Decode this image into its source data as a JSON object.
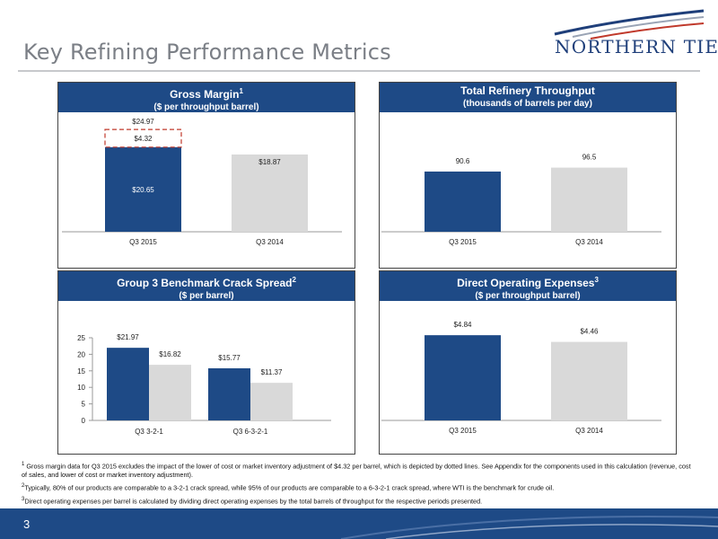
{
  "header": {
    "title": "Key Refining Performance Metrics",
    "logo_text": "NORTHERN TIER"
  },
  "panels": {
    "gross_margin": {
      "title": "Gross Margin",
      "title_sup": "1",
      "subtitle": "($ per throughput barrel)"
    },
    "throughput": {
      "title": "Total Refinery Throughput",
      "subtitle": "(thousands of barrels per day)"
    },
    "crack_spread": {
      "title": "Group 3 Benchmark Crack Spread",
      "title_sup": "2",
      "subtitle": "($ per barrel)"
    },
    "operating_expenses": {
      "title": "Direct Operating Expenses",
      "title_sup": "3",
      "subtitle": "($ per throughput barrel)"
    }
  },
  "colors": {
    "navy": "#1e4a86",
    "gray_bar": "#d9d9d9",
    "title_gray": "#7b7f86"
  },
  "chart_data": [
    {
      "id": "gross_margin",
      "type": "bar",
      "categories": [
        "Q3 2015",
        "Q3 2014"
      ],
      "values": [
        20.65,
        18.87
      ],
      "labels": [
        "$20.65",
        "$18.87"
      ],
      "colors": [
        "#1e4a86",
        "#d9d9d9"
      ],
      "stack_extra": {
        "value": 4.32,
        "label": "$4.32",
        "total": 24.97,
        "total_label": "$24.97",
        "style": "dashed"
      },
      "ylim": [
        0,
        25
      ]
    },
    {
      "id": "throughput",
      "type": "bar",
      "categories": [
        "Q3 2015",
        "Q3 2014"
      ],
      "values": [
        90.6,
        96.5
      ],
      "labels": [
        "90.6",
        "96.5"
      ],
      "colors": [
        "#1e4a86",
        "#d9d9d9"
      ],
      "ylim": [
        0,
        100
      ]
    },
    {
      "id": "crack_spread",
      "type": "bar",
      "categories": [
        "Q3 3-2-1",
        "Q3 6-3-2-1"
      ],
      "series": [
        {
          "values": [
            21.97,
            15.77
          ],
          "labels": [
            "$21.97",
            "$15.77"
          ],
          "color": "#1e4a86"
        },
        {
          "values": [
            16.82,
            11.37
          ],
          "labels": [
            "$16.82",
            "$11.37"
          ],
          "color": "#d9d9d9"
        }
      ],
      "ylim": [
        0,
        25
      ],
      "yticks": [
        0,
        5,
        10,
        15,
        20,
        25
      ],
      "show_yaxis": true
    },
    {
      "id": "operating_expenses",
      "type": "bar",
      "categories": [
        "Q3 2015",
        "Q3 2014"
      ],
      "values": [
        4.84,
        4.46
      ],
      "labels": [
        "$4.84",
        "$4.46"
      ],
      "colors": [
        "#1e4a86",
        "#d9d9d9"
      ],
      "ylim": [
        0,
        5
      ]
    }
  ],
  "footnotes": {
    "n1_mark": "1",
    "n1": "Gross margin data for Q3 2015 excludes the impact of the lower of cost or market inventory adjustment of $4.32 per barrel, which is depicted by dotted lines. See Appendix for the components used in this calculation (revenue, cost of sales, and lower of cost or market inventory adjustment).",
    "n2_mark": "2",
    "n2": "Typically, 80% of our products are comparable to a 3-2-1 crack spread, while 95% of our products are comparable to a 6-3-2-1 crack spread, where WTI is the benchmark for crude oil.",
    "n3_mark": "3",
    "n3": "Direct operating expenses per barrel is calculated by dividing direct operating expenses by the total barrels of throughput for the respective periods presented."
  },
  "footer": {
    "page_number": "3"
  }
}
